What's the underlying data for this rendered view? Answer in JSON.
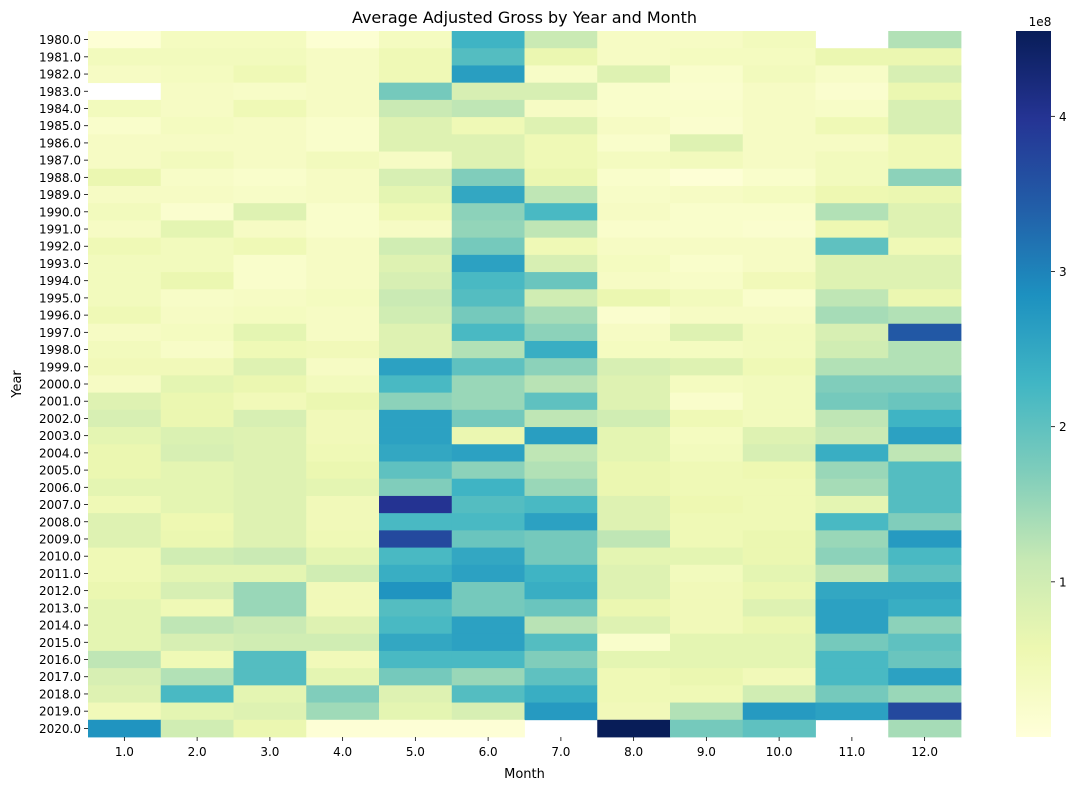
{
  "chart_data": {
    "type": "heatmap",
    "title": "Average Adjusted Gross by Year and Month",
    "xlabel": "Month",
    "ylabel": "Year",
    "x_categories": [
      "1.0",
      "2.0",
      "3.0",
      "4.0",
      "5.0",
      "6.0",
      "7.0",
      "8.0",
      "9.0",
      "10.0",
      "11.0",
      "12.0"
    ],
    "y_categories": [
      "1980.0",
      "1981.0",
      "1982.0",
      "1983.0",
      "1984.0",
      "1985.0",
      "1986.0",
      "1987.0",
      "1988.0",
      "1989.0",
      "1990.0",
      "1991.0",
      "1992.0",
      "1993.0",
      "1994.0",
      "1995.0",
      "1996.0",
      "1997.0",
      "1998.0",
      "1999.0",
      "2000.0",
      "2001.0",
      "2002.0",
      "2003.0",
      "2004.0",
      "2005.0",
      "2006.0",
      "2007.0",
      "2008.0",
      "2009.0",
      "2010.0",
      "2011.0",
      "2012.0",
      "2013.0",
      "2014.0",
      "2015.0",
      "2016.0",
      "2017.0",
      "2018.0",
      "2019.0",
      "2020.0"
    ],
    "colormap": "YlGnBu",
    "value_range": [
      0,
      455000000
    ],
    "colorbar": {
      "ticks": [
        100000000,
        200000000,
        300000000,
        400000000
      ],
      "tick_labels": [
        "1",
        "2",
        "3",
        "4"
      ],
      "offset_label": "1e8"
    },
    "values_e8": [
      [
        0.05,
        0.35,
        0.35,
        0.1,
        0.35,
        2.3,
        1.1,
        0.3,
        0.3,
        0.4,
        null,
        1.3
      ],
      [
        0.4,
        0.4,
        0.4,
        0.3,
        0.5,
        2.1,
        0.6,
        0.3,
        0.35,
        0.35,
        0.6,
        0.6
      ],
      [
        0.3,
        0.35,
        0.5,
        0.3,
        0.5,
        2.65,
        0.25,
        0.8,
        0.2,
        0.4,
        0.25,
        0.9
      ],
      [
        null,
        0.3,
        0.25,
        0.3,
        1.8,
        0.9,
        0.9,
        0.2,
        0.15,
        0.3,
        0.15,
        0.6
      ],
      [
        0.4,
        0.3,
        0.5,
        0.3,
        1.1,
        1.2,
        0.3,
        0.2,
        0.2,
        0.3,
        0.25,
        0.9
      ],
      [
        0.2,
        0.35,
        0.3,
        0.2,
        0.8,
        0.5,
        0.8,
        0.3,
        0.15,
        0.3,
        0.5,
        0.9
      ],
      [
        0.3,
        0.3,
        0.3,
        0.2,
        0.8,
        0.8,
        0.5,
        0.2,
        0.8,
        0.3,
        0.3,
        0.5
      ],
      [
        0.3,
        0.4,
        0.3,
        0.4,
        0.3,
        0.8,
        0.5,
        0.35,
        0.4,
        0.3,
        0.4,
        0.5
      ],
      [
        0.6,
        0.25,
        0.2,
        0.3,
        0.9,
        1.7,
        0.6,
        0.2,
        0.05,
        0.2,
        0.4,
        1.6
      ],
      [
        0.3,
        0.3,
        0.25,
        0.3,
        0.7,
        2.5,
        1.2,
        0.25,
        0.3,
        0.35,
        0.55,
        0.6
      ],
      [
        0.4,
        0.15,
        0.8,
        0.2,
        0.5,
        1.6,
        2.2,
        0.3,
        0.2,
        0.2,
        1.3,
        0.8
      ],
      [
        0.3,
        0.7,
        0.3,
        0.2,
        0.3,
        1.55,
        1.2,
        0.2,
        0.2,
        0.15,
        0.55,
        0.8
      ],
      [
        0.5,
        0.4,
        0.5,
        0.3,
        1.0,
        1.8,
        0.5,
        0.3,
        0.3,
        0.3,
        2.0,
        0.5
      ],
      [
        0.4,
        0.4,
        0.2,
        0.3,
        0.8,
        2.6,
        0.9,
        0.35,
        0.2,
        0.3,
        0.8,
        0.8
      ],
      [
        0.4,
        0.6,
        0.2,
        0.3,
        0.9,
        2.2,
        1.9,
        0.3,
        0.25,
        0.45,
        0.8,
        0.8
      ],
      [
        0.4,
        0.25,
        0.3,
        0.35,
        1.1,
        2.1,
        1.0,
        0.6,
        0.4,
        0.2,
        1.2,
        0.6
      ],
      [
        0.5,
        0.3,
        0.35,
        0.3,
        1.0,
        1.8,
        1.4,
        0.15,
        0.3,
        0.3,
        1.4,
        1.3
      ],
      [
        0.3,
        0.35,
        0.7,
        0.3,
        0.8,
        2.2,
        1.6,
        0.3,
        0.8,
        0.4,
        0.9,
        3.5
      ],
      [
        0.4,
        0.25,
        0.5,
        0.45,
        0.8,
        1.3,
        2.4,
        0.35,
        0.35,
        0.4,
        1.0,
        1.3
      ],
      [
        0.45,
        0.45,
        0.8,
        0.3,
        2.6,
        2.0,
        1.6,
        0.9,
        0.8,
        0.5,
        1.3,
        1.3
      ],
      [
        0.3,
        0.7,
        0.6,
        0.4,
        2.2,
        1.5,
        1.25,
        0.8,
        0.35,
        0.4,
        1.7,
        1.7
      ],
      [
        0.8,
        0.6,
        0.45,
        0.6,
        1.6,
        1.5,
        2.0,
        0.8,
        0.2,
        0.4,
        1.8,
        1.9
      ],
      [
        0.9,
        0.6,
        0.9,
        0.45,
        2.6,
        1.8,
        1.2,
        1.0,
        0.5,
        0.4,
        1.2,
        2.3
      ],
      [
        0.7,
        0.85,
        0.8,
        0.45,
        2.6,
        0.6,
        2.65,
        0.7,
        0.35,
        0.8,
        1.1,
        2.6
      ],
      [
        0.6,
        0.9,
        0.8,
        0.5,
        2.5,
        2.6,
        1.2,
        0.7,
        0.4,
        0.9,
        2.4,
        1.2
      ],
      [
        0.6,
        0.7,
        0.8,
        0.6,
        2.0,
        1.6,
        1.3,
        0.6,
        0.5,
        0.55,
        1.5,
        2.1
      ],
      [
        0.7,
        0.7,
        0.8,
        0.7,
        1.7,
        2.3,
        1.5,
        0.6,
        0.5,
        0.5,
        1.4,
        2.1
      ],
      [
        0.5,
        0.7,
        0.8,
        0.45,
        4.0,
        2.1,
        2.2,
        0.8,
        0.55,
        0.5,
        0.7,
        2.1
      ],
      [
        0.8,
        0.55,
        0.8,
        0.45,
        2.2,
        2.2,
        2.6,
        0.8,
        0.5,
        0.5,
        2.2,
        1.7
      ],
      [
        0.8,
        0.6,
        0.8,
        0.5,
        3.7,
        1.9,
        1.8,
        1.2,
        0.5,
        0.6,
        1.5,
        2.7
      ],
      [
        0.5,
        1.0,
        1.1,
        0.7,
        2.2,
        2.5,
        1.8,
        0.7,
        0.7,
        0.6,
        1.6,
        2.2
      ],
      [
        0.5,
        0.7,
        0.7,
        1.0,
        2.4,
        2.6,
        2.3,
        0.8,
        0.4,
        0.7,
        1.2,
        2.0
      ],
      [
        0.6,
        0.9,
        1.5,
        0.45,
        2.8,
        1.8,
        2.4,
        0.8,
        0.45,
        0.6,
        2.5,
        2.5
      ],
      [
        0.7,
        0.5,
        1.5,
        0.45,
        2.1,
        1.8,
        1.9,
        0.6,
        0.45,
        0.8,
        2.6,
        2.4
      ],
      [
        0.7,
        1.2,
        1.1,
        0.8,
        2.2,
        2.6,
        1.25,
        0.8,
        0.45,
        0.6,
        2.6,
        1.6
      ],
      [
        0.7,
        0.9,
        1.0,
        1.0,
        2.5,
        2.6,
        2.1,
        0.2,
        0.7,
        0.7,
        1.8,
        2.0
      ],
      [
        1.2,
        0.5,
        2.1,
        0.45,
        2.2,
        2.2,
        1.7,
        0.7,
        0.7,
        0.7,
        2.2,
        1.9
      ],
      [
        0.9,
        1.3,
        2.1,
        0.7,
        1.8,
        1.5,
        2.0,
        0.5,
        0.6,
        0.45,
        2.2,
        2.6
      ],
      [
        0.8,
        2.2,
        0.7,
        1.7,
        0.8,
        2.1,
        2.4,
        0.5,
        0.5,
        1.0,
        1.8,
        1.5
      ],
      [
        0.45,
        0.7,
        0.8,
        1.45,
        0.7,
        0.9,
        2.7,
        0.45,
        1.3,
        2.7,
        2.6,
        3.7
      ],
      [
        2.8,
        1.0,
        0.6,
        0.05,
        0.05,
        0.05,
        null,
        4.55,
        1.8,
        2.0,
        null,
        1.4
      ]
    ]
  }
}
